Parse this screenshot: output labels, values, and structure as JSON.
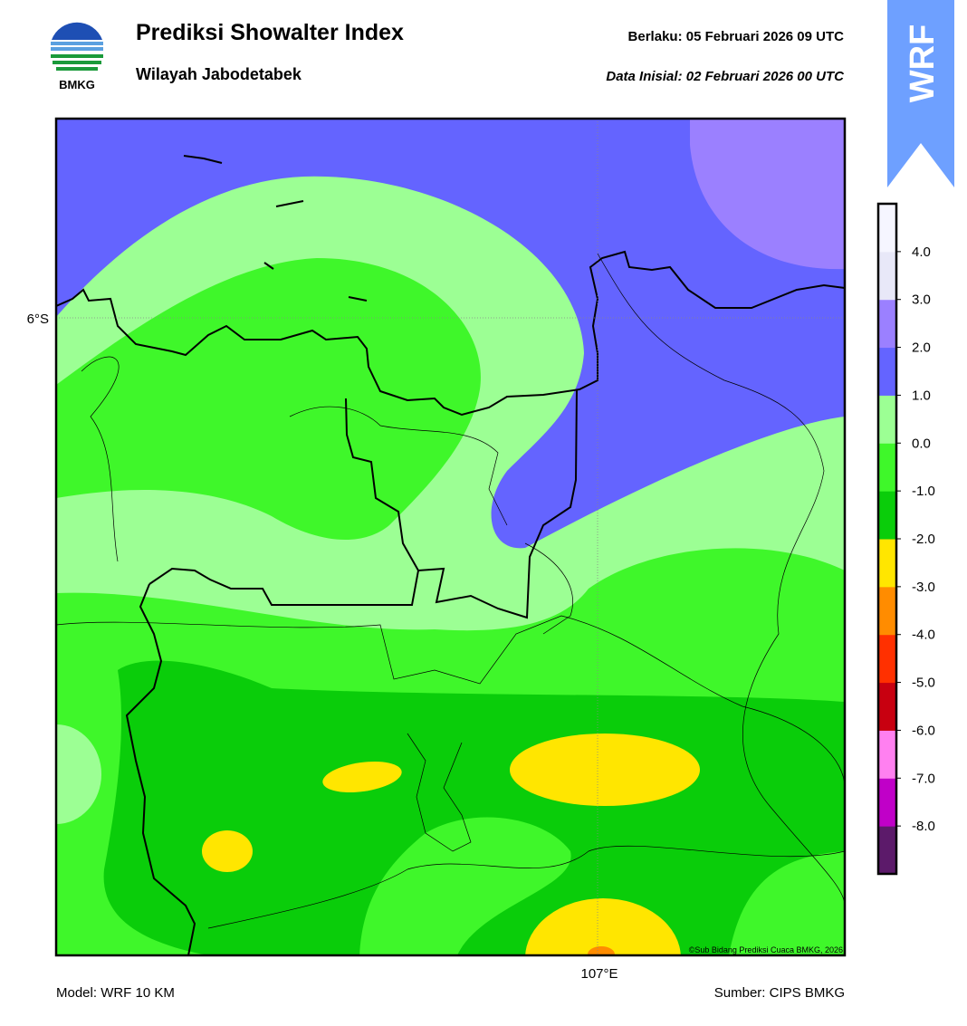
{
  "header": {
    "logo_text": "BMKG",
    "title": "Prediksi Showalter Index",
    "subtitle": "Wilayah Jabodetabek",
    "valid": "Berlaku:  05 Februari 2026 09 UTC",
    "init": "Data Inisial:  02 Februari 2026 00 UTC",
    "badge": "WRF"
  },
  "map": {
    "lat_label": "6°S",
    "lon_label": "107°E",
    "credit": "©Sub Bidang Prediksi Cuaca BMKG, 2026"
  },
  "colorbar": {
    "colors": [
      "#5c1a6a",
      "#c000c8",
      "#ff80f0",
      "#c80010",
      "#ff3000",
      "#ff8c00",
      "#ffe600",
      "#0acd0a",
      "#3ff72a",
      "#9cff94",
      "#6464ff",
      "#9b80ff",
      "#e8e8f8",
      "#f6f6ff"
    ],
    "ticks": [
      {
        "value": -8,
        "label": "-8.0"
      },
      {
        "value": -7,
        "label": "-7.0"
      },
      {
        "value": -6,
        "label": "-6.0"
      },
      {
        "value": -5,
        "label": "-5.0"
      },
      {
        "value": -4,
        "label": "-4.0"
      },
      {
        "value": -3,
        "label": "-3.0"
      },
      {
        "value": -2,
        "label": "-2.0"
      },
      {
        "value": -1,
        "label": "-1.0"
      },
      {
        "value": 0,
        "label": "0.0"
      },
      {
        "value": 1,
        "label": "1.0"
      },
      {
        "value": 2,
        "label": "2.0"
      },
      {
        "value": 3,
        "label": "3.0"
      },
      {
        "value": 4,
        "label": "4.0"
      }
    ]
  },
  "footer": {
    "model": "Model: WRF 10 KM",
    "source": "Sumber: CIPS BMKG"
  }
}
